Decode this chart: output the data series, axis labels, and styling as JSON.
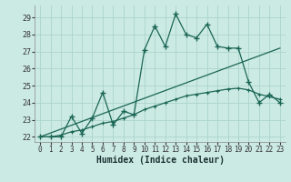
{
  "xlabel": "Humidex (Indice chaleur)",
  "xlim": [
    -0.5,
    23.5
  ],
  "ylim": [
    21.7,
    29.7
  ],
  "xticks": [
    0,
    1,
    2,
    3,
    4,
    5,
    6,
    7,
    8,
    9,
    10,
    11,
    12,
    13,
    14,
    15,
    16,
    17,
    18,
    19,
    20,
    21,
    22,
    23
  ],
  "yticks": [
    22,
    23,
    24,
    25,
    26,
    27,
    28,
    29
  ],
  "bg_color": "#cceae4",
  "grid_color": "#aad4cc",
  "line_color": "#1a6655",
  "line1_x": [
    0,
    1,
    2,
    3,
    4,
    5,
    6,
    7,
    8,
    9,
    10,
    11,
    12,
    13,
    14,
    15,
    16,
    17,
    18,
    19,
    20,
    21,
    22,
    23
  ],
  "line1_y": [
    22.0,
    22.0,
    22.0,
    23.2,
    22.2,
    23.1,
    24.6,
    22.7,
    23.5,
    23.3,
    27.1,
    28.5,
    27.3,
    29.2,
    28.0,
    27.8,
    28.6,
    27.3,
    27.2,
    27.2,
    25.2,
    24.0,
    24.5,
    24.0
  ],
  "line2_x": [
    0,
    1,
    2,
    3,
    4,
    5,
    6,
    7,
    8,
    9,
    10,
    11,
    12,
    13,
    14,
    15,
    16,
    17,
    18,
    19,
    20,
    21,
    22,
    23
  ],
  "line2_y": [
    22.0,
    22.0,
    22.1,
    22.3,
    22.4,
    22.6,
    22.8,
    22.9,
    23.1,
    23.3,
    23.6,
    23.8,
    24.0,
    24.2,
    24.4,
    24.5,
    24.6,
    24.7,
    24.8,
    24.85,
    24.75,
    24.5,
    24.35,
    24.2
  ],
  "line3_x": [
    0,
    23
  ],
  "line3_y": [
    22.0,
    27.2
  ]
}
